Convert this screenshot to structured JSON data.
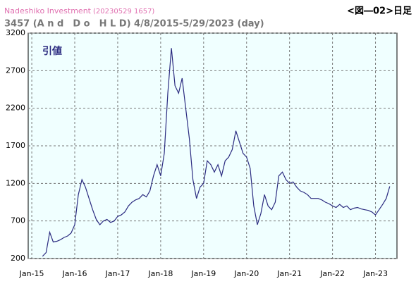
{
  "chart_data": {
    "type": "line",
    "source": "Nadeshiko Investment",
    "timestamp": "(20230529 1657)",
    "figure_label": "<図―02>日足",
    "title": "3457 (A n d　D o　H L D) 4/8/2015-5/29/2023 (day)",
    "x": [
      "2015-04",
      "2015-05",
      "2015-06",
      "2015-07",
      "2015-08",
      "2015-09",
      "2015-10",
      "2015-11",
      "2015-12",
      "2016-01",
      "2016-02",
      "2016-03",
      "2016-04",
      "2016-05",
      "2016-06",
      "2016-07",
      "2016-08",
      "2016-09",
      "2016-10",
      "2016-11",
      "2016-12",
      "2017-01",
      "2017-02",
      "2017-03",
      "2017-04",
      "2017-05",
      "2017-06",
      "2017-07",
      "2017-08",
      "2017-09",
      "2017-10",
      "2017-11",
      "2017-12",
      "2018-01",
      "2018-02",
      "2018-03",
      "2018-04",
      "2018-05",
      "2018-06",
      "2018-07",
      "2018-08",
      "2018-09",
      "2018-10",
      "2018-11",
      "2018-12",
      "2019-01",
      "2019-02",
      "2019-03",
      "2019-04",
      "2019-05",
      "2019-06",
      "2019-07",
      "2019-08",
      "2019-09",
      "2019-10",
      "2019-11",
      "2019-12",
      "2020-01",
      "2020-02",
      "2020-03",
      "2020-04",
      "2020-05",
      "2020-06",
      "2020-07",
      "2020-08",
      "2020-09",
      "2020-10",
      "2020-11",
      "2020-12",
      "2021-01",
      "2021-02",
      "2021-03",
      "2021-04",
      "2021-05",
      "2021-06",
      "2021-07",
      "2021-08",
      "2021-09",
      "2021-10",
      "2021-11",
      "2021-12",
      "2022-01",
      "2022-02",
      "2022-03",
      "2022-04",
      "2022-05",
      "2022-06",
      "2022-07",
      "2022-08",
      "2022-09",
      "2022-10",
      "2022-11",
      "2022-12",
      "2023-01",
      "2023-02",
      "2023-03",
      "2023-04",
      "2023-05"
    ],
    "series": [
      {
        "name": "引値",
        "color": "#2b2b80",
        "values": [
          230,
          280,
          550,
          420,
          430,
          450,
          480,
          500,
          540,
          650,
          1050,
          1250,
          1150,
          1000,
          850,
          720,
          650,
          700,
          720,
          680,
          700,
          760,
          780,
          820,
          900,
          950,
          980,
          1000,
          1050,
          1020,
          1100,
          1300,
          1450,
          1300,
          1600,
          2400,
          3000,
          2500,
          2400,
          2600,
          2200,
          1800,
          1250,
          1000,
          1150,
          1200,
          1500,
          1450,
          1350,
          1450,
          1300,
          1500,
          1550,
          1650,
          1900,
          1750,
          1600,
          1550,
          1400,
          900,
          650,
          800,
          1050,
          900,
          850,
          950,
          1300,
          1350,
          1250,
          1200,
          1220,
          1150,
          1100,
          1080,
          1050,
          1000,
          1000,
          1000,
          980,
          950,
          930,
          900,
          880,
          920,
          880,
          900,
          850,
          870,
          880,
          860,
          850,
          840,
          820,
          780,
          850,
          920,
          1000,
          1160
        ]
      }
    ],
    "xlim": [
      "2014-12",
      "2023-07"
    ],
    "xticks": [
      {
        "value": "2015-01",
        "label": "Jan-15"
      },
      {
        "value": "2016-01",
        "label": "Jan-16"
      },
      {
        "value": "2017-01",
        "label": "Jan-17"
      },
      {
        "value": "2018-01",
        "label": "Jan-18"
      },
      {
        "value": "2019-01",
        "label": "Jan-19"
      },
      {
        "value": "2020-01",
        "label": "Jan-20"
      },
      {
        "value": "2021-01",
        "label": "Jan-21"
      },
      {
        "value": "2022-01",
        "label": "Jan-22"
      },
      {
        "value": "2023-01",
        "label": "Jan-23"
      }
    ],
    "ylim": [
      200,
      3200
    ],
    "yticks": [
      200,
      700,
      1200,
      1700,
      2200,
      2700,
      3200
    ],
    "grid": true,
    "background": "#f0ffff"
  }
}
